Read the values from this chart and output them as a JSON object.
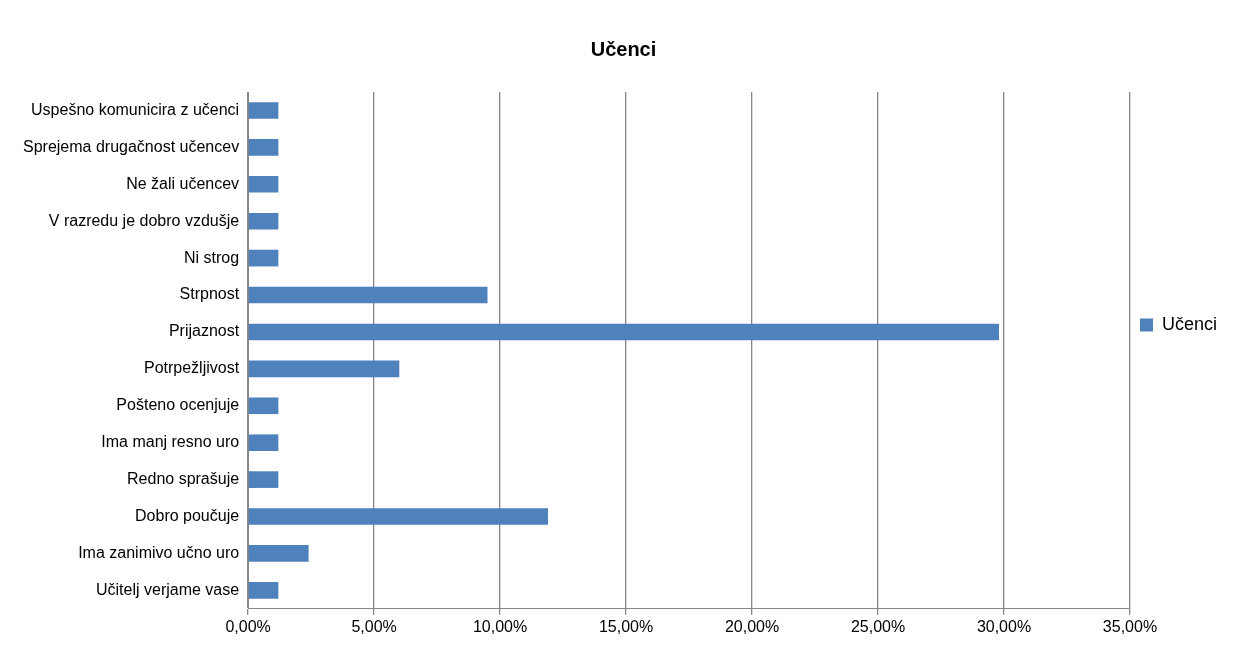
{
  "chart_data": {
    "type": "bar",
    "orientation": "horizontal",
    "title": "Učenci",
    "categories": [
      "Uspešno komunicira z učenci",
      "Sprejema drugačnost učencev",
      "Ne žali učencev",
      "V razredu je dobro vzdušje",
      "Ni strog",
      "Strpnost",
      "Prijaznost",
      "Potrpežljivost",
      "Pošteno ocenjuje",
      "Ima manj resno uro",
      "Redno sprašuje",
      "Dobro poučuje",
      "Ima zanimivo učno uro",
      "Učitelj verjame vase"
    ],
    "series": [
      {
        "name": "Učenci",
        "color": "#4f81bd",
        "values": [
          1.2,
          1.2,
          1.2,
          1.2,
          1.2,
          9.5,
          29.8,
          6.0,
          1.2,
          1.2,
          1.2,
          11.9,
          2.4,
          1.2
        ]
      }
    ],
    "xlim": [
      0,
      35
    ],
    "xticks": [
      {
        "value": 0,
        "label": "0,00%"
      },
      {
        "value": 5,
        "label": "5,00%"
      },
      {
        "value": 10,
        "label": "10,00%"
      },
      {
        "value": 15,
        "label": "15,00%"
      },
      {
        "value": 20,
        "label": "20,00%"
      },
      {
        "value": 25,
        "label": "25,00%"
      },
      {
        "value": 30,
        "label": "30,00%"
      },
      {
        "value": 35,
        "label": "35,00%"
      }
    ],
    "grid": "x",
    "legend": "right"
  }
}
